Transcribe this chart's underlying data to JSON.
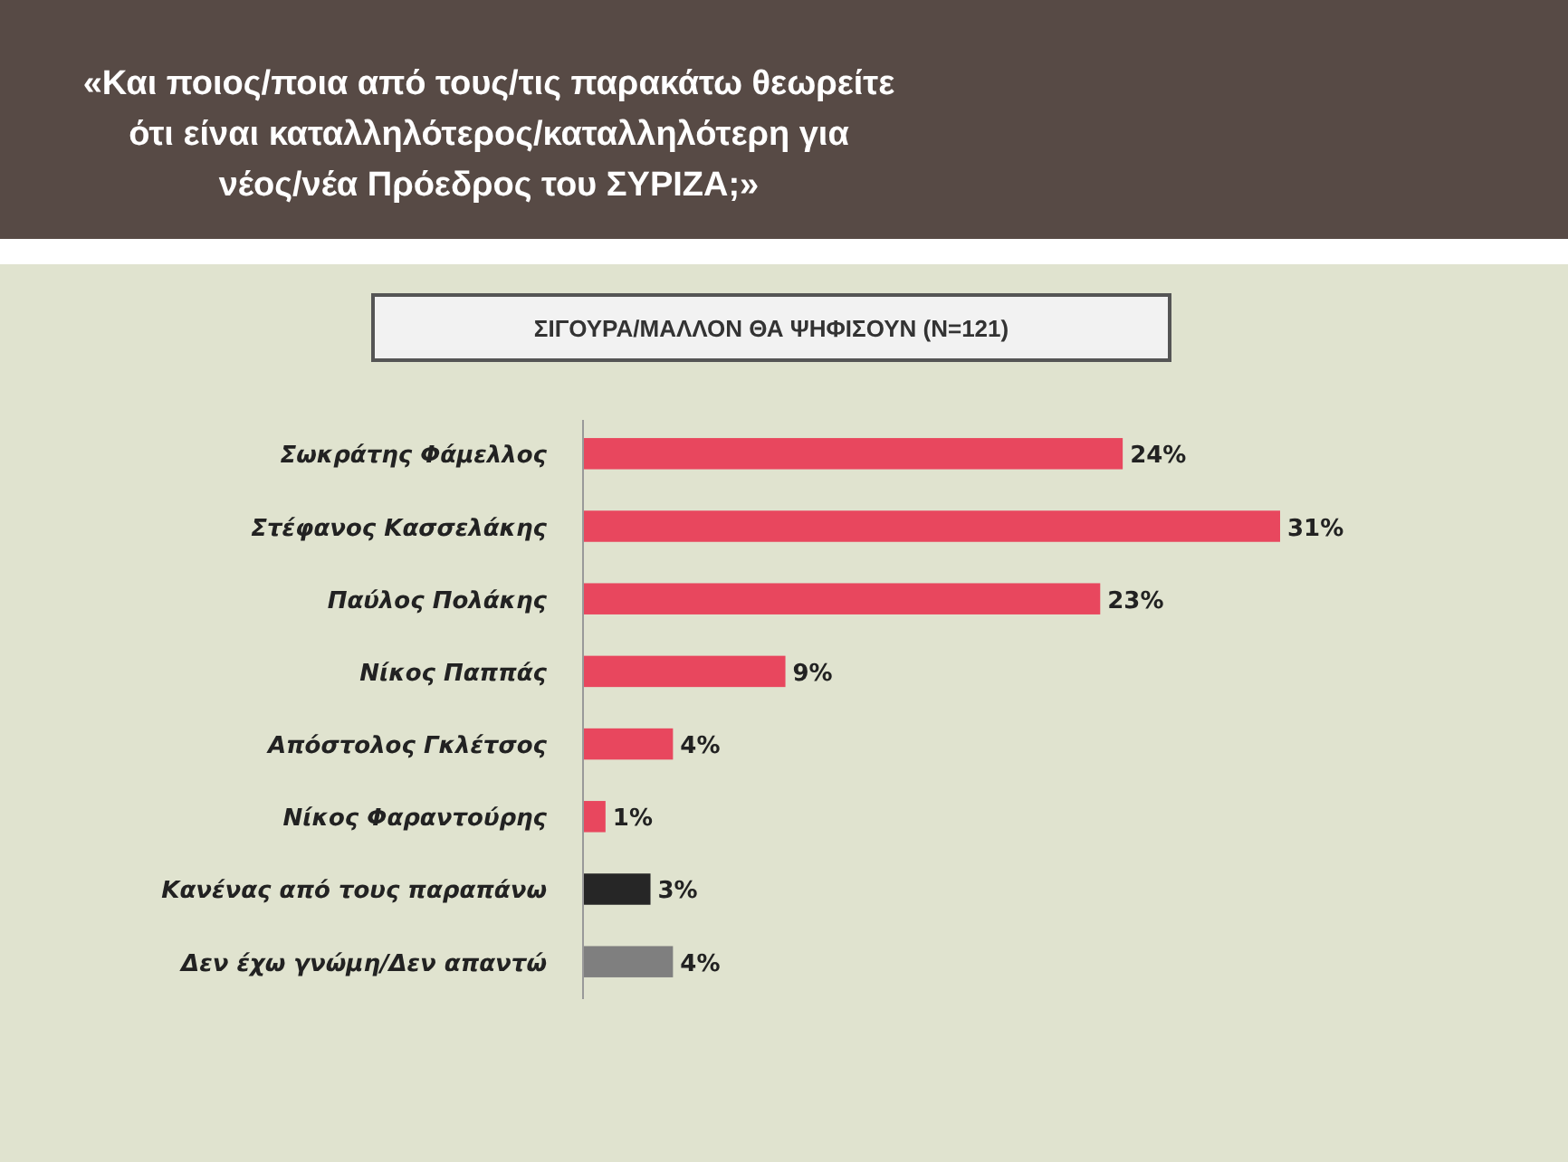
{
  "chart_data": {
    "type": "bar",
    "orientation": "horizontal",
    "title": "«Και ποιος/ποια από τους/τις παρακάτω θεωρείτε ότι είναι καταλληλότερος/καταλληλότερη για νέος/νέα Πρόεδρος του ΣΥΡΙΖΑ;»",
    "subtitle": "ΣΙΓΟΥΡΑ/ΜΑΛΛΟΝ ΘΑ ΨΗΦΙΣΟΥΝ (N=121)",
    "categories": [
      "Σωκράτης Φάμελλος",
      "Στέφανος Κασσελάκης",
      "Παύλος Πολάκης",
      "Νίκος Παππάς",
      "Απόστολος Γκλέτσος",
      "Νίκος Φαραντούρης",
      "Κανένας από τους παραπάνω",
      "Δεν έχω γνώμη/Δεν απαντώ"
    ],
    "values": [
      24,
      31,
      23,
      9,
      4,
      1,
      3,
      4
    ],
    "value_labels": [
      "24%",
      "31%",
      "23%",
      "9%",
      "4%",
      "1%",
      "3%",
      "4%"
    ],
    "colors": [
      "#e8475e",
      "#e8475e",
      "#e8475e",
      "#e8475e",
      "#e8475e",
      "#e8475e",
      "#262626",
      "#7f7f7f"
    ]
  }
}
